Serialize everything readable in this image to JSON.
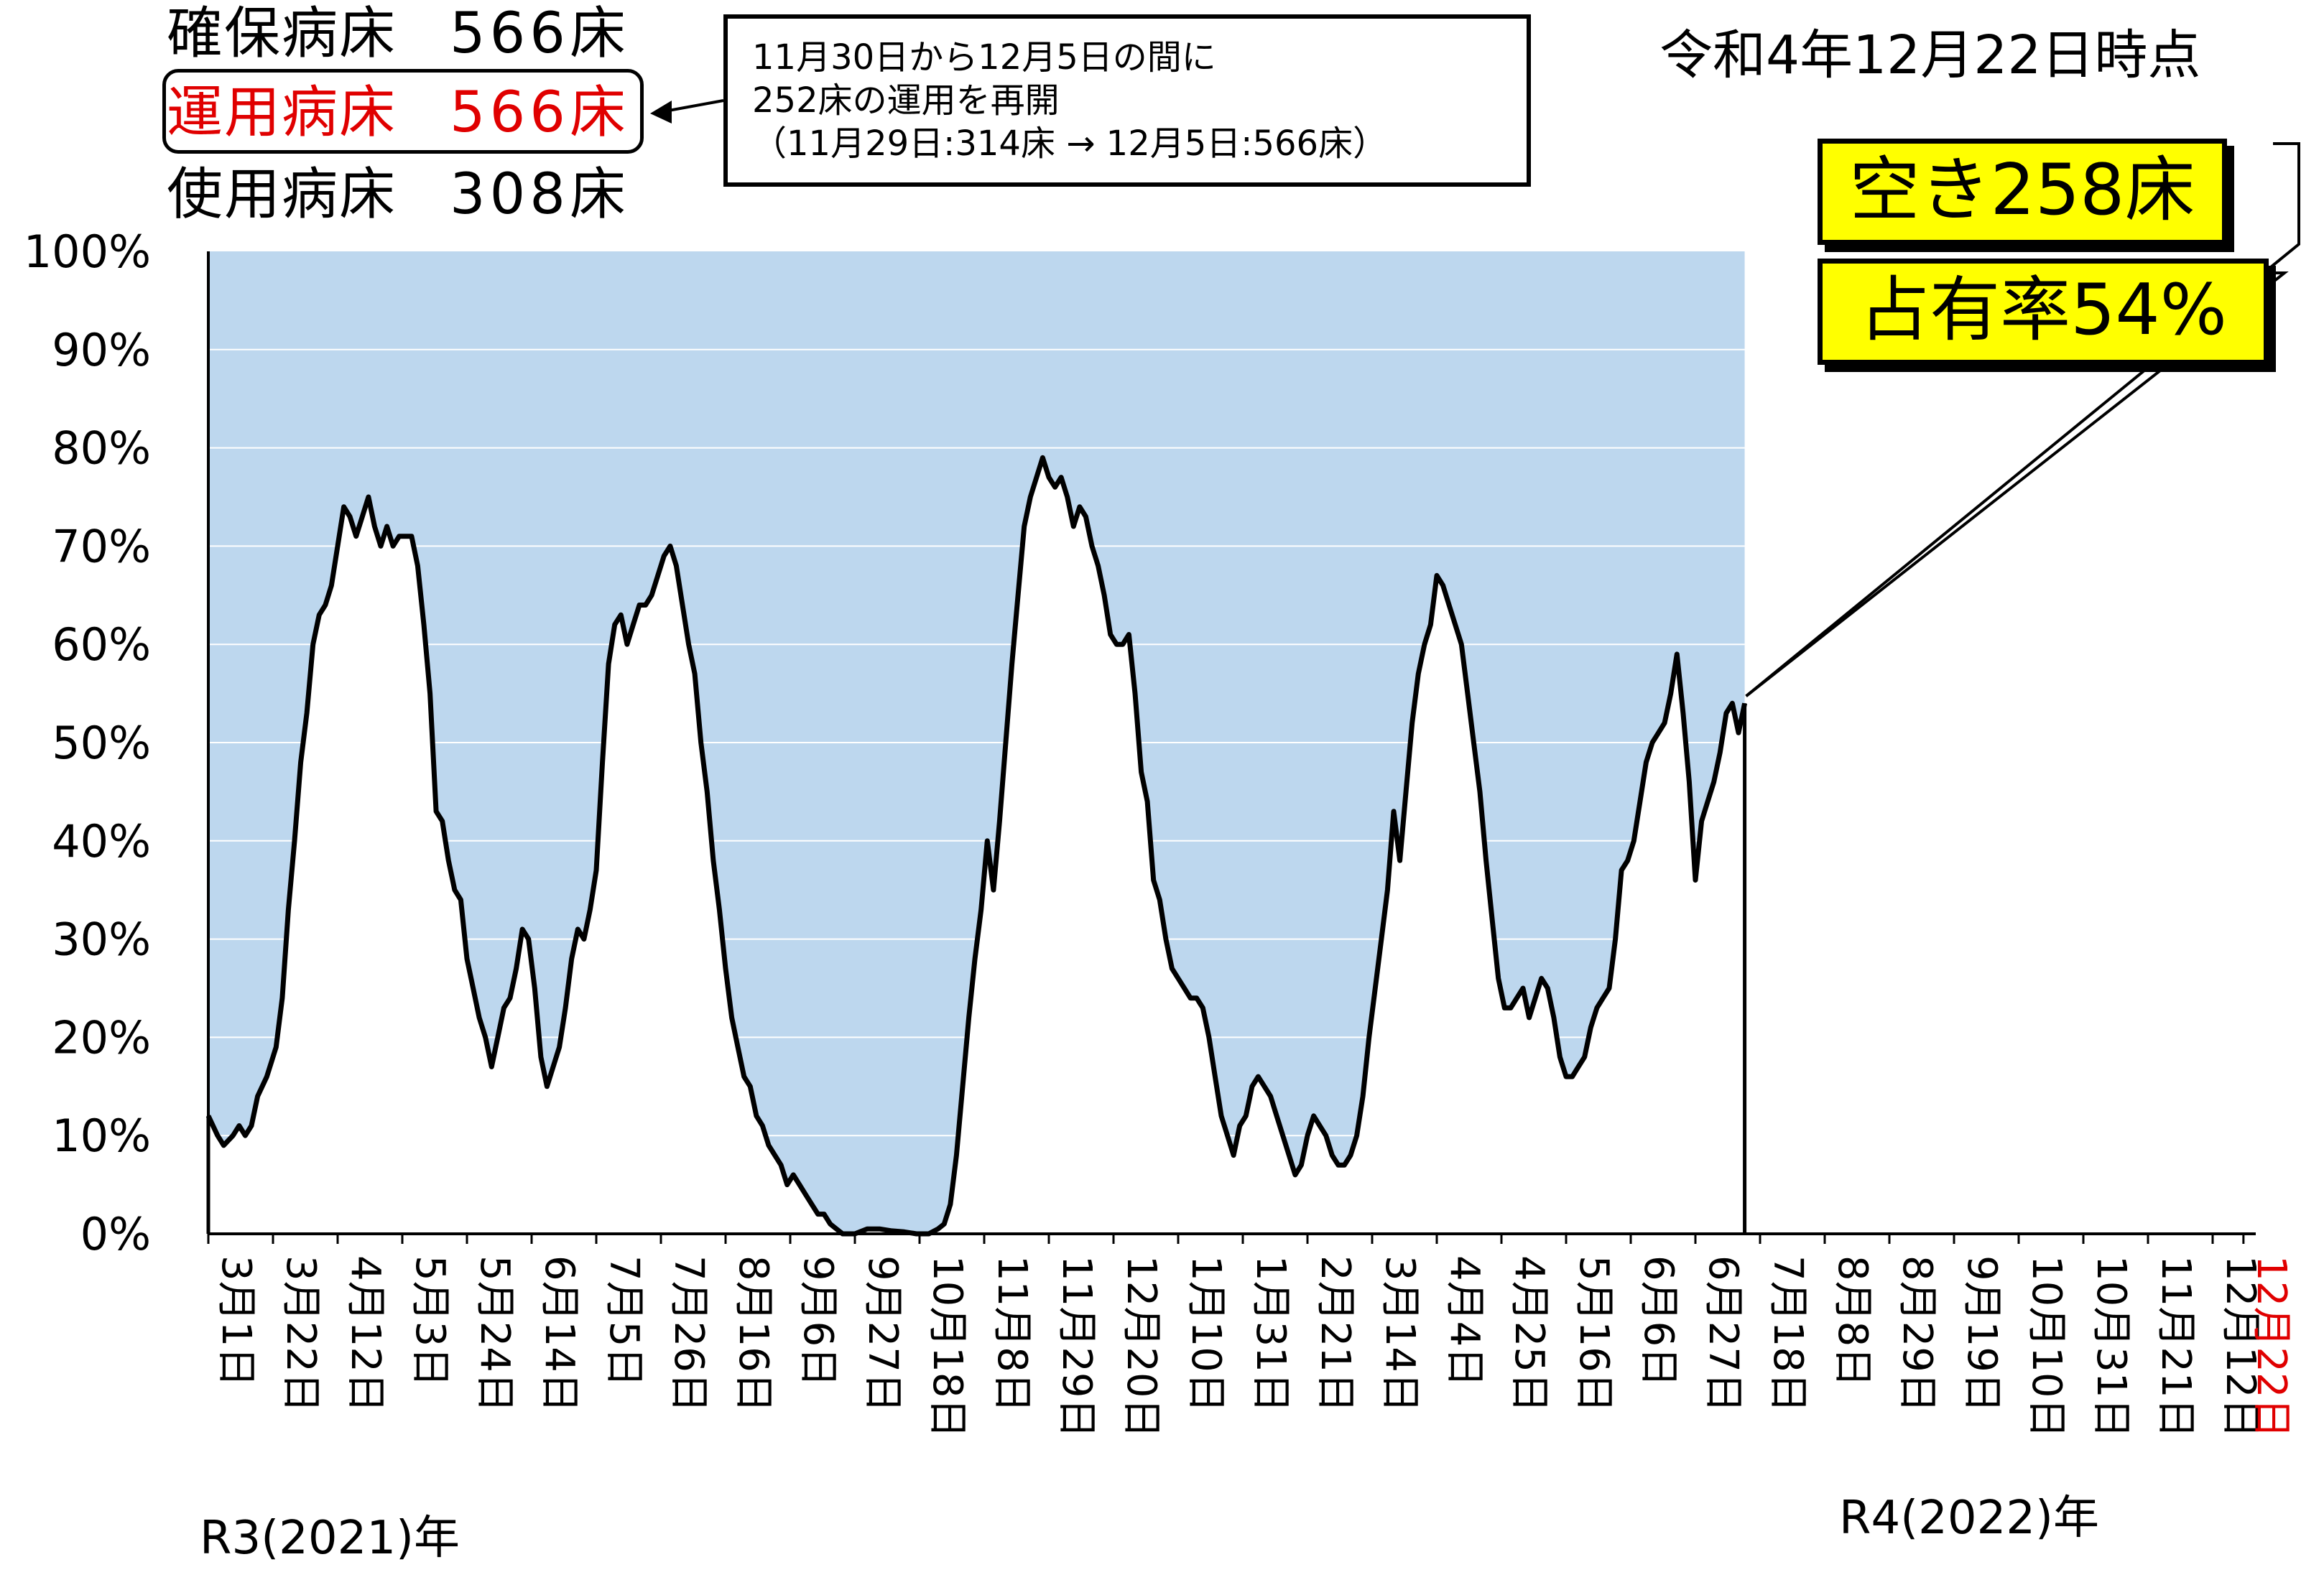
{
  "header": {
    "secured_label": "確保病床",
    "secured_value": "566床",
    "operational_label": "運用病床",
    "operational_value": "566床",
    "used_label": "使用病床",
    "used_value": "308床"
  },
  "note": {
    "line1": "11月30日から12月5日の間に",
    "line2": "252床の運用を再開",
    "line3": "（11月29日:314床 → 12月5日:566床）"
  },
  "as_of": "令和4年12月22日時点",
  "badges": {
    "free": "空き258床",
    "occupancy": "占有率54%"
  },
  "era_labels": {
    "r3": "R3(2021)年",
    "r4": "R4(2022)年"
  },
  "colors": {
    "area_fill": "#bdd7ee",
    "line": "#000000",
    "badge_fill": "#ffff00",
    "highlight_red": "#e00000"
  },
  "chart_data": {
    "type": "line",
    "title": "",
    "xlabel": "",
    "ylabel": "",
    "ylim": [
      0,
      100
    ],
    "y_unit": "%",
    "grid": "horizontal",
    "background_fill": "100% band shaded light blue",
    "yticks": [
      "0%",
      "10%",
      "20%",
      "30%",
      "40%",
      "50%",
      "60%",
      "70%",
      "80%",
      "90%",
      "100%"
    ],
    "xticks": [
      "3月1日",
      "3月22日",
      "4月12日",
      "5月3日",
      "5月24日",
      "6月14日",
      "7月5日",
      "7月26日",
      "8月16日",
      "9月6日",
      "9月27日",
      "10月18日",
      "11月8日",
      "11月29日",
      "12月20日",
      "1月10日",
      "1月31日",
      "2月21日",
      "3月14日",
      "4月4日",
      "4月25日",
      "5月16日",
      "6月6日",
      "6月27日",
      "7月18日",
      "8月8日",
      "8月29日",
      "9月19日",
      "10月10日",
      "10月31日",
      "11月21日",
      "12月12日",
      "12月22日"
    ],
    "xtick_days": [
      0,
      21,
      42,
      63,
      84,
      105,
      126,
      147,
      168,
      189,
      210,
      231,
      252,
      273,
      294,
      315,
      336,
      357,
      378,
      399,
      420,
      441,
      462,
      483,
      504,
      525,
      546,
      567,
      588,
      609,
      630,
      651,
      661
    ],
    "highlight_tick": "12月22日",
    "series": [
      {
        "points": [
          [
            0,
            12
          ],
          [
            3,
            10
          ],
          [
            5,
            9
          ],
          [
            8,
            10
          ],
          [
            10,
            11
          ],
          [
            12,
            10
          ],
          [
            14,
            11
          ],
          [
            16,
            14
          ],
          [
            19,
            16
          ],
          [
            22,
            19
          ],
          [
            24,
            24
          ],
          [
            26,
            33
          ],
          [
            28,
            40
          ],
          [
            30,
            48
          ],
          [
            32,
            53
          ],
          [
            34,
            60
          ],
          [
            36,
            63
          ],
          [
            38,
            64
          ],
          [
            40,
            66
          ],
          [
            42,
            70
          ],
          [
            44,
            74
          ],
          [
            46,
            73
          ],
          [
            48,
            71
          ],
          [
            50,
            73
          ],
          [
            52,
            75
          ],
          [
            54,
            72
          ],
          [
            56,
            70
          ],
          [
            58,
            72
          ],
          [
            60,
            70
          ],
          [
            62,
            71
          ],
          [
            64,
            71
          ],
          [
            66,
            71
          ],
          [
            68,
            68
          ],
          [
            70,
            62
          ],
          [
            72,
            55
          ],
          [
            74,
            43
          ],
          [
            76,
            42
          ],
          [
            78,
            38
          ],
          [
            80,
            35
          ],
          [
            82,
            34
          ],
          [
            84,
            28
          ],
          [
            86,
            25
          ],
          [
            88,
            22
          ],
          [
            90,
            20
          ],
          [
            92,
            17
          ],
          [
            94,
            20
          ],
          [
            96,
            23
          ],
          [
            98,
            24
          ],
          [
            100,
            27
          ],
          [
            102,
            31
          ],
          [
            104,
            30
          ],
          [
            106,
            25
          ],
          [
            108,
            18
          ],
          [
            110,
            15
          ],
          [
            112,
            17
          ],
          [
            114,
            19
          ],
          [
            116,
            23
          ],
          [
            118,
            28
          ],
          [
            120,
            31
          ],
          [
            122,
            30
          ],
          [
            124,
            33
          ],
          [
            126,
            37
          ],
          [
            128,
            48
          ],
          [
            130,
            58
          ],
          [
            132,
            62
          ],
          [
            134,
            63
          ],
          [
            136,
            60
          ],
          [
            138,
            62
          ],
          [
            140,
            64
          ],
          [
            142,
            64
          ],
          [
            144,
            65
          ],
          [
            146,
            67
          ],
          [
            148,
            69
          ],
          [
            150,
            70
          ],
          [
            152,
            68
          ],
          [
            154,
            64
          ],
          [
            156,
            60
          ],
          [
            158,
            57
          ],
          [
            160,
            50
          ],
          [
            162,
            45
          ],
          [
            164,
            38
          ],
          [
            166,
            33
          ],
          [
            168,
            27
          ],
          [
            170,
            22
          ],
          [
            172,
            19
          ],
          [
            174,
            16
          ],
          [
            176,
            15
          ],
          [
            178,
            12
          ],
          [
            180,
            11
          ],
          [
            182,
            9
          ],
          [
            184,
            8
          ],
          [
            186,
            7
          ],
          [
            188,
            5
          ],
          [
            190,
            6
          ],
          [
            192,
            5
          ],
          [
            194,
            4
          ],
          [
            196,
            3
          ],
          [
            198,
            2
          ],
          [
            200,
            2
          ],
          [
            202,
            1
          ],
          [
            204,
            0.5
          ],
          [
            206,
            0
          ],
          [
            210,
            0
          ],
          [
            214,
            0.5
          ],
          [
            218,
            0.5
          ],
          [
            222,
            0.3
          ],
          [
            226,
            0.2
          ],
          [
            230,
            0
          ],
          [
            234,
            0
          ],
          [
            237,
            0.5
          ],
          [
            239,
            1
          ],
          [
            241,
            3
          ],
          [
            243,
            8
          ],
          [
            245,
            15
          ],
          [
            247,
            22
          ],
          [
            249,
            28
          ],
          [
            251,
            33
          ],
          [
            253,
            40
          ],
          [
            255,
            35
          ],
          [
            257,
            42
          ],
          [
            259,
            50
          ],
          [
            261,
            58
          ],
          [
            263,
            65
          ],
          [
            265,
            72
          ],
          [
            267,
            75
          ],
          [
            269,
            77
          ],
          [
            271,
            79
          ],
          [
            273,
            77
          ],
          [
            275,
            76
          ],
          [
            277,
            77
          ],
          [
            279,
            75
          ],
          [
            281,
            72
          ],
          [
            283,
            74
          ],
          [
            285,
            73
          ],
          [
            287,
            70
          ],
          [
            289,
            68
          ],
          [
            291,
            65
          ],
          [
            293,
            61
          ],
          [
            295,
            60
          ],
          [
            297,
            60
          ],
          [
            299,
            61
          ],
          [
            301,
            55
          ],
          [
            303,
            47
          ],
          [
            305,
            44
          ],
          [
            307,
            36
          ],
          [
            309,
            34
          ],
          [
            311,
            30
          ],
          [
            313,
            27
          ],
          [
            315,
            26
          ],
          [
            317,
            25
          ],
          [
            319,
            24
          ],
          [
            321,
            24
          ],
          [
            323,
            23
          ],
          [
            325,
            20
          ],
          [
            327,
            16
          ],
          [
            329,
            12
          ],
          [
            331,
            10
          ],
          [
            333,
            8
          ],
          [
            335,
            11
          ],
          [
            337,
            12
          ],
          [
            339,
            15
          ],
          [
            341,
            16
          ],
          [
            343,
            15
          ],
          [
            345,
            14
          ],
          [
            347,
            12
          ],
          [
            349,
            10
          ],
          [
            351,
            8
          ],
          [
            353,
            6
          ],
          [
            355,
            7
          ],
          [
            357,
            10
          ],
          [
            359,
            12
          ],
          [
            361,
            11
          ],
          [
            363,
            10
          ],
          [
            365,
            8
          ],
          [
            367,
            7
          ],
          [
            369,
            7
          ],
          [
            371,
            8
          ],
          [
            373,
            10
          ],
          [
            375,
            14
          ],
          [
            377,
            20
          ],
          [
            379,
            25
          ],
          [
            381,
            30
          ],
          [
            383,
            35
          ],
          [
            385,
            43
          ],
          [
            387,
            38
          ],
          [
            389,
            45
          ],
          [
            391,
            52
          ],
          [
            393,
            57
          ],
          [
            395,
            60
          ],
          [
            397,
            62
          ],
          [
            399,
            67
          ],
          [
            401,
            66
          ],
          [
            403,
            64
          ],
          [
            405,
            62
          ],
          [
            407,
            60
          ],
          [
            409,
            55
          ],
          [
            411,
            50
          ],
          [
            413,
            45
          ],
          [
            415,
            38
          ],
          [
            417,
            32
          ],
          [
            419,
            26
          ],
          [
            421,
            23
          ],
          [
            423,
            23
          ],
          [
            425,
            24
          ],
          [
            427,
            25
          ],
          [
            429,
            22
          ],
          [
            431,
            24
          ],
          [
            433,
            26
          ],
          [
            435,
            25
          ],
          [
            437,
            22
          ],
          [
            439,
            18
          ],
          [
            441,
            16
          ],
          [
            443,
            16
          ],
          [
            445,
            17
          ],
          [
            447,
            18
          ],
          [
            449,
            21
          ],
          [
            451,
            23
          ],
          [
            453,
            24
          ],
          [
            455,
            25
          ],
          [
            457,
            30
          ],
          [
            459,
            37
          ],
          [
            461,
            38
          ],
          [
            463,
            40
          ],
          [
            465,
            44
          ],
          [
            467,
            48
          ],
          [
            469,
            50
          ],
          [
            471,
            51
          ],
          [
            473,
            52
          ],
          [
            475,
            55
          ],
          [
            477,
            59
          ],
          [
            479,
            53
          ],
          [
            481,
            46
          ],
          [
            483,
            36
          ],
          [
            485,
            42
          ],
          [
            487,
            44
          ],
          [
            489,
            46
          ],
          [
            491,
            49
          ],
          [
            493,
            53
          ],
          [
            495,
            54
          ],
          [
            497,
            51
          ],
          [
            499,
            54
          ]
        ]
      }
    ],
    "x_range_days": [
      0,
      665
    ]
  }
}
